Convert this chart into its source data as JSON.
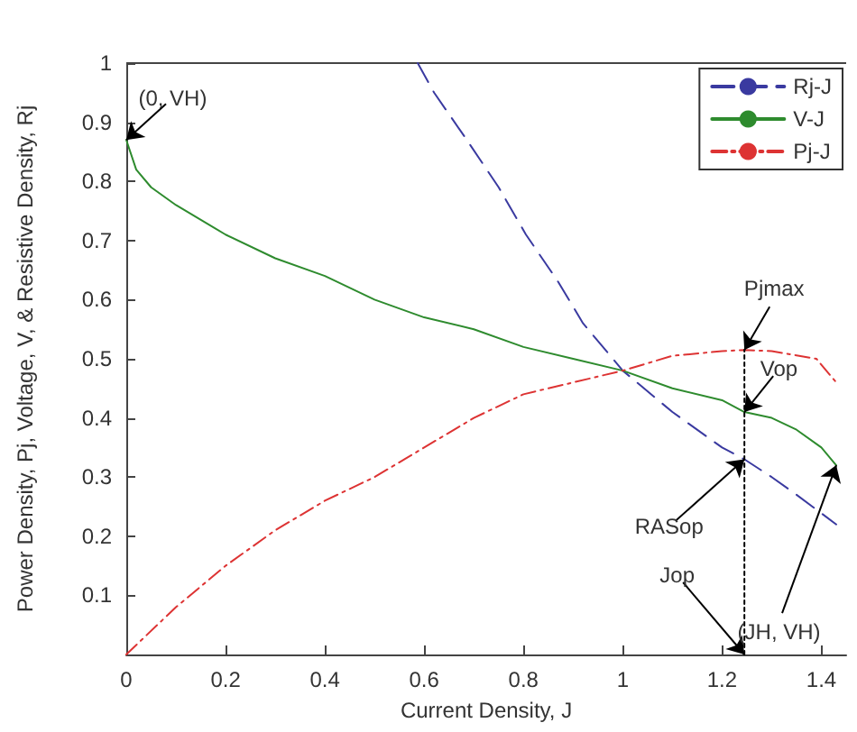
{
  "chart_data": {
    "type": "line",
    "xlabel": "Current Density, J",
    "ylabel": "Power Density, Pj, Voltage, V, & Resistive Density, Rj",
    "xlim": [
      0,
      1.45
    ],
    "xticks": [
      0,
      0.2,
      0.4,
      0.6,
      0.8,
      1,
      1.2,
      1.4
    ],
    "ylim": [
      0,
      1
    ],
    "yticks": [
      {
        "value": 0,
        "label": null
      },
      0.1,
      0.2,
      0.3,
      0.4,
      0.5,
      0.6,
      0.7,
      0.8,
      0.9,
      1
    ],
    "grid": false,
    "legend": "top right",
    "marker": "none",
    "series": [
      {
        "name": "Rj-J",
        "color": "#3a3aa0",
        "line_style": "dashed",
        "x": [
          0.587,
          0.62,
          0.686,
          0.75,
          0.805,
          0.87,
          0.92,
          1.0,
          1.1,
          1.2,
          1.245,
          1.3,
          1.35,
          1.43
        ],
        "values": [
          1.0,
          0.95,
          0.87,
          0.79,
          0.71,
          0.63,
          0.56,
          0.48,
          0.41,
          0.35,
          0.33,
          0.3,
          0.27,
          0.22
        ]
      },
      {
        "name": "V-J",
        "color": "#2e8b2e",
        "line_style": "solid",
        "x": [
          0,
          0.02,
          0.05,
          0.1,
          0.2,
          0.3,
          0.4,
          0.5,
          0.6,
          0.7,
          0.8,
          0.9,
          1.0,
          1.1,
          1.2,
          1.245,
          1.3,
          1.35,
          1.4,
          1.42,
          1.43
        ],
        "values": [
          0.87,
          0.82,
          0.79,
          0.76,
          0.71,
          0.67,
          0.64,
          0.6,
          0.57,
          0.55,
          0.52,
          0.5,
          0.48,
          0.45,
          0.43,
          0.41,
          0.4,
          0.38,
          0.35,
          0.33,
          0.32
        ]
      },
      {
        "name": "Pj-J",
        "color": "#dd3333",
        "line_style": "dashdot",
        "x": [
          0,
          0.1,
          0.2,
          0.3,
          0.4,
          0.5,
          0.6,
          0.7,
          0.8,
          0.9,
          1.0,
          1.1,
          1.2,
          1.245,
          1.3,
          1.39,
          1.43
        ],
        "values": [
          0,
          0.08,
          0.15,
          0.21,
          0.26,
          0.3,
          0.35,
          0.4,
          0.44,
          0.46,
          0.48,
          0.505,
          0.513,
          0.515,
          0.513,
          0.5,
          0.46
        ]
      },
      {
        "color": "#000000",
        "line_style": "dotted",
        "x": [
          1.245,
          1.245
        ],
        "values": [
          0,
          0.515
        ]
      }
    ],
    "annotations": [
      {
        "text": "(0, VH)",
        "x": 0,
        "y": 0.87
      },
      {
        "text": "Pjmax",
        "x": 1.245,
        "y": 0.515
      },
      {
        "text": "Vop",
        "x": 1.245,
        "y": 0.41
      },
      {
        "text": "RASop",
        "x": 1.245,
        "y": 0.33
      },
      {
        "text": "Jop",
        "x": 1.245,
        "y": 0
      },
      {
        "text": "(JH, VH)",
        "x": 1.43,
        "y": 0.32
      }
    ]
  }
}
